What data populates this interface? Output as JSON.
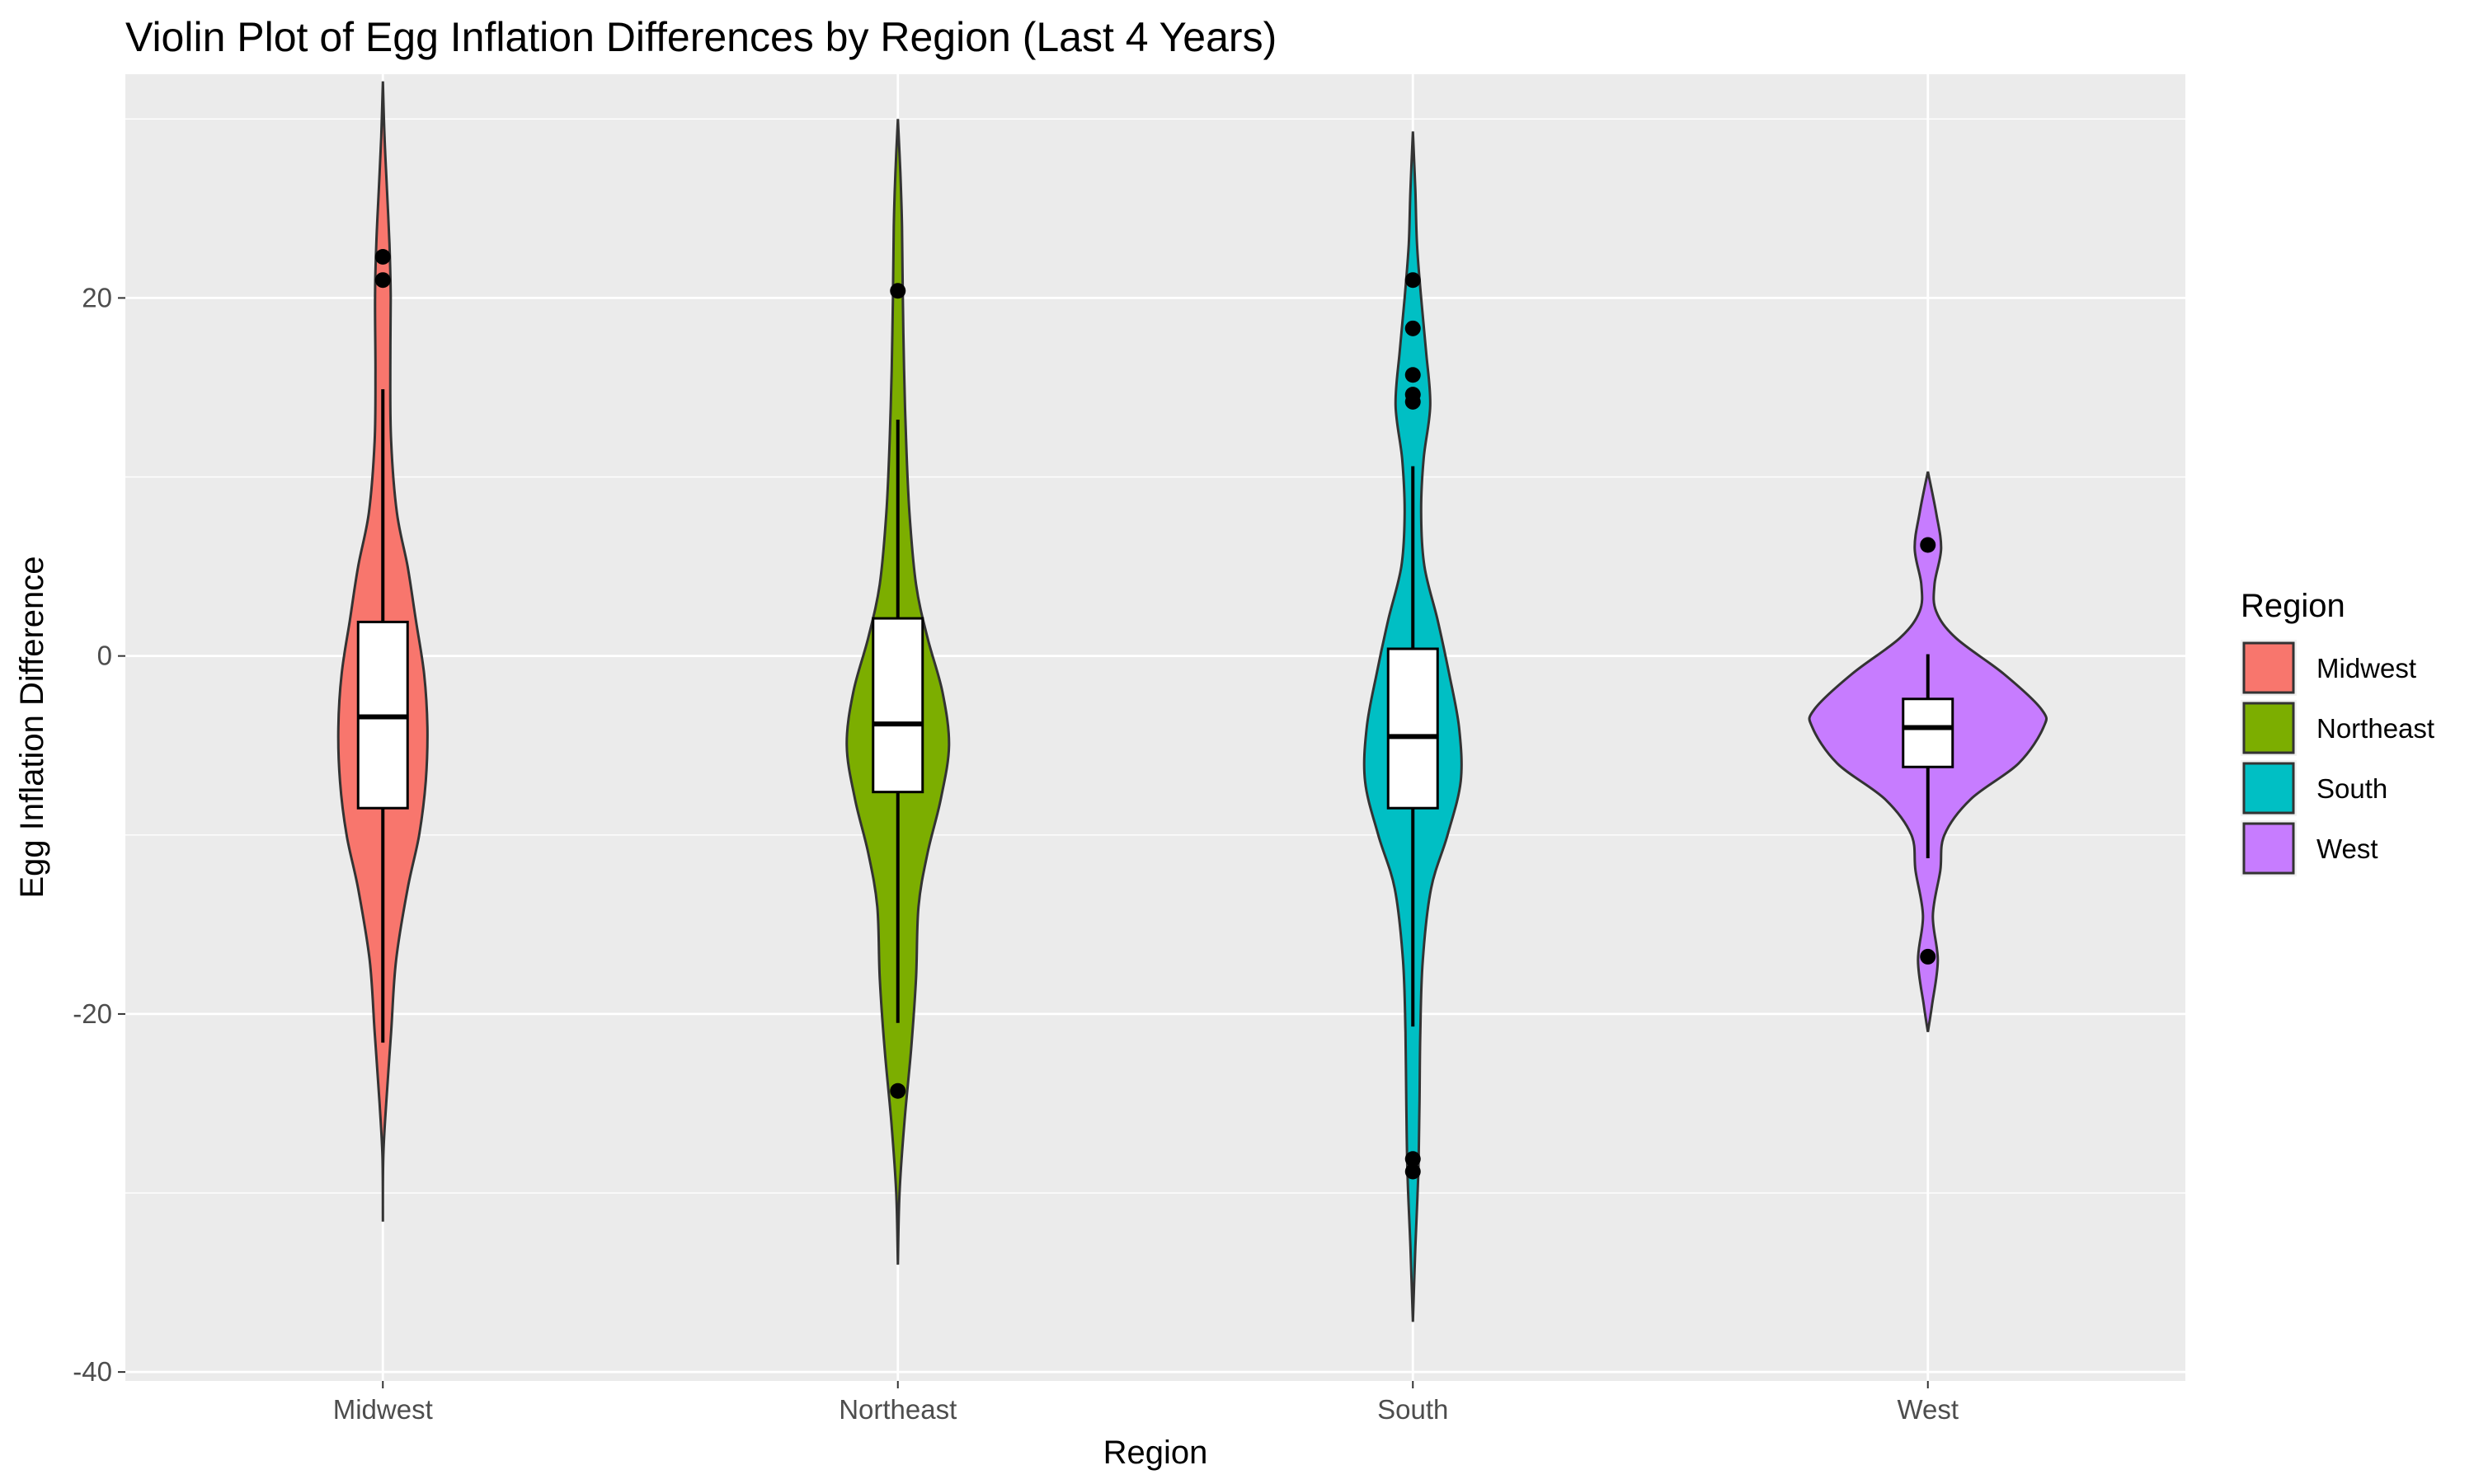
{
  "chart_data": {
    "type": "violin",
    "title": "Violin Plot of Egg Inflation Differences by Region (Last 4 Years)",
    "xlabel": "Region",
    "ylabel": "Egg Inflation Difference",
    "ylim": [
      -40.5,
      32.5
    ],
    "yticks": [
      -40,
      -20,
      0,
      20
    ],
    "ytick_labels": [
      "-40",
      "-20",
      "0",
      "20"
    ],
    "categories": [
      "Midwest",
      "Northeast",
      "South",
      "West"
    ],
    "grid": true,
    "legend": {
      "title": "Region",
      "position": "right",
      "items": [
        {
          "label": "Midwest",
          "color": "#F8766D"
        },
        {
          "label": "Northeast",
          "color": "#7CAE00"
        },
        {
          "label": "South",
          "color": "#00BFC4"
        },
        {
          "label": "West",
          "color": "#C77CFF"
        }
      ]
    },
    "series": [
      {
        "name": "Midwest",
        "color": "#F8766D",
        "box": {
          "q1": -8.5,
          "median": -3.4,
          "q3": 1.9,
          "whisker_low": -21.6,
          "whisker_high": 14.9
        },
        "outliers": [
          22.3,
          21.0
        ],
        "density": [
          [
            -31.6,
            0.0
          ],
          [
            -28.0,
            0.5
          ],
          [
            -25.0,
            4.0
          ],
          [
            -21.0,
            10.0
          ],
          [
            -17.0,
            16.0
          ],
          [
            -13.0,
            30.0
          ],
          [
            -10.0,
            44.0
          ],
          [
            -7.0,
            52.0
          ],
          [
            -4.0,
            54.0
          ],
          [
            -1.0,
            50.0
          ],
          [
            2.0,
            40.0
          ],
          [
            5.0,
            30.0
          ],
          [
            8.0,
            17.0
          ],
          [
            12.0,
            10.0
          ],
          [
            16.0,
            9.0
          ],
          [
            20.0,
            9.5
          ],
          [
            23.0,
            8.0
          ],
          [
            26.0,
            5.0
          ],
          [
            29.0,
            2.0
          ],
          [
            32.1,
            0.0
          ]
        ]
      },
      {
        "name": "Northeast",
        "color": "#7CAE00",
        "box": {
          "q1": -7.6,
          "median": -3.8,
          "q3": 2.1,
          "whisker_low": -20.5,
          "whisker_high": 13.2
        },
        "outliers": [
          20.4,
          -24.3
        ],
        "density": [
          [
            -34.0,
            0.0
          ],
          [
            -30.0,
            2.0
          ],
          [
            -26.0,
            8.0
          ],
          [
            -22.0,
            16.0
          ],
          [
            -18.0,
            22.0
          ],
          [
            -14.0,
            25.0
          ],
          [
            -11.0,
            36.0
          ],
          [
            -8.0,
            52.0
          ],
          [
            -5.0,
            62.0
          ],
          [
            -2.0,
            54.0
          ],
          [
            1.0,
            36.0
          ],
          [
            4.0,
            22.0
          ],
          [
            8.0,
            14.0
          ],
          [
            12.0,
            10.0
          ],
          [
            16.0,
            7.5
          ],
          [
            20.0,
            6.0
          ],
          [
            24.0,
            5.0
          ],
          [
            27.0,
            3.0
          ],
          [
            30.0,
            0.0
          ]
        ]
      },
      {
        "name": "South",
        "color": "#00BFC4",
        "box": {
          "q1": -8.5,
          "median": -4.5,
          "q3": 0.4,
          "whisker_low": -20.7,
          "whisker_high": 10.6
        },
        "outliers": [
          21.0,
          18.3,
          15.7,
          14.6,
          14.2,
          -28.1,
          -28.8
        ],
        "density": [
          [
            -37.2,
            0.0
          ],
          [
            -33.0,
            3.0
          ],
          [
            -29.0,
            6.5
          ],
          [
            -25.0,
            8.0
          ],
          [
            -21.0,
            9.0
          ],
          [
            -17.0,
            12.0
          ],
          [
            -13.0,
            22.0
          ],
          [
            -10.0,
            42.0
          ],
          [
            -7.0,
            58.0
          ],
          [
            -4.0,
            56.0
          ],
          [
            -1.0,
            44.0
          ],
          [
            2.0,
            30.0
          ],
          [
            5.0,
            14.0
          ],
          [
            8.0,
            10.0
          ],
          [
            11.0,
            13.0
          ],
          [
            14.0,
            21.0
          ],
          [
            17.0,
            16.0
          ],
          [
            20.0,
            10.0
          ],
          [
            23.0,
            5.0
          ],
          [
            26.0,
            3.0
          ],
          [
            29.3,
            0.0
          ]
        ]
      },
      {
        "name": "West",
        "color": "#C77CFF",
        "box": {
          "q1": -6.2,
          "median": -4.0,
          "q3": -2.4,
          "whisker_low": -11.3,
          "whisker_high": 0.1
        },
        "outliers": [
          6.2,
          -16.8
        ],
        "density": [
          [
            -21.0,
            0.0
          ],
          [
            -19.5,
            5.0
          ],
          [
            -17.0,
            12.0
          ],
          [
            -14.5,
            6.0
          ],
          [
            -12.0,
            15.0
          ],
          [
            -10.0,
            20.0
          ],
          [
            -8.0,
            52.0
          ],
          [
            -6.0,
            110.0
          ],
          [
            -4.0,
            140.0
          ],
          [
            -3.0,
            138.0
          ],
          [
            -1.0,
            92.0
          ],
          [
            1.0,
            34.0
          ],
          [
            2.5,
            10.0
          ],
          [
            4.0,
            8.0
          ],
          [
            6.0,
            16.0
          ],
          [
            8.0,
            10.0
          ],
          [
            10.3,
            0.0
          ]
        ]
      }
    ]
  }
}
